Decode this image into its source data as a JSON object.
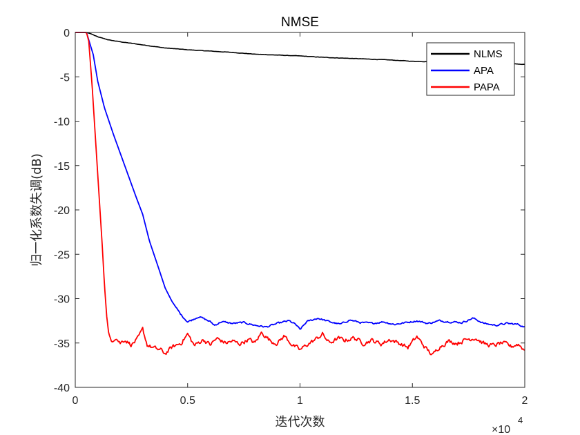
{
  "chart_data": {
    "type": "line",
    "title": "NMSE",
    "xlabel": "迭代次数",
    "ylabel": "归一化系数失调(dB)",
    "x_exponent_label": "×10",
    "x_exponent_power": "4",
    "xlim": [
      0,
      20000
    ],
    "ylim": [
      -40,
      0
    ],
    "xticks": [
      0,
      5000,
      10000,
      15000,
      20000
    ],
    "xtick_labels": [
      "0",
      "0.5",
      "1",
      "1.5",
      "2"
    ],
    "yticks": [
      0,
      -5,
      -10,
      -15,
      -20,
      -25,
      -30,
      -35,
      -40
    ],
    "ytick_labels": [
      "0",
      "-5",
      "-10",
      "-15",
      "-20",
      "-25",
      "-30",
      "-35",
      "-40"
    ],
    "grid": false,
    "legend_position": "top-right",
    "series": [
      {
        "name": "NLMS",
        "color": "#000000",
        "points": [
          [
            0,
            0
          ],
          [
            500,
            0
          ],
          [
            700,
            -0.15
          ],
          [
            1000,
            -0.5
          ],
          [
            1500,
            -0.85
          ],
          [
            2000,
            -1.05
          ],
          [
            3000,
            -1.4
          ],
          [
            4000,
            -1.75
          ],
          [
            5000,
            -1.95
          ],
          [
            6000,
            -2.1
          ],
          [
            7000,
            -2.25
          ],
          [
            8000,
            -2.45
          ],
          [
            9000,
            -2.55
          ],
          [
            10000,
            -2.65
          ],
          [
            11000,
            -2.8
          ],
          [
            12000,
            -2.9
          ],
          [
            13000,
            -3.0
          ],
          [
            14000,
            -3.1
          ],
          [
            15000,
            -3.25
          ],
          [
            16000,
            -3.3
          ],
          [
            17000,
            -3.35
          ],
          [
            18000,
            -3.45
          ],
          [
            19000,
            -3.5
          ],
          [
            20000,
            -3.6
          ]
        ]
      },
      {
        "name": "APA",
        "color": "#0000ff",
        "points": [
          [
            0,
            0
          ],
          [
            500,
            0
          ],
          [
            800,
            -2.5
          ],
          [
            1000,
            -5.5
          ],
          [
            1300,
            -8.5
          ],
          [
            1700,
            -11.5
          ],
          [
            2200,
            -15
          ],
          [
            2700,
            -18.5
          ],
          [
            3000,
            -20.5
          ],
          [
            3300,
            -23.5
          ],
          [
            3700,
            -26.5
          ],
          [
            4000,
            -28.8
          ],
          [
            4300,
            -30.3
          ],
          [
            4700,
            -31.8
          ],
          [
            5000,
            -32.6
          ],
          [
            5200,
            -32.4
          ],
          [
            5500,
            -32.0
          ],
          [
            6000,
            -32.6
          ],
          [
            6200,
            -33.0
          ],
          [
            6500,
            -32.6
          ],
          [
            7000,
            -32.8
          ],
          [
            7500,
            -32.7
          ],
          [
            8000,
            -33.0
          ],
          [
            8500,
            -33.2
          ],
          [
            9000,
            -32.8
          ],
          [
            9500,
            -32.5
          ],
          [
            9800,
            -32.9
          ],
          [
            10000,
            -33.5
          ],
          [
            10300,
            -32.6
          ],
          [
            10800,
            -32.2
          ],
          [
            11300,
            -32.6
          ],
          [
            11800,
            -32.9
          ],
          [
            12200,
            -32.4
          ],
          [
            12700,
            -32.7
          ],
          [
            13200,
            -32.8
          ],
          [
            13700,
            -32.6
          ],
          [
            14200,
            -32.9
          ],
          [
            14700,
            -32.7
          ],
          [
            15200,
            -32.5
          ],
          [
            15700,
            -32.8
          ],
          [
            16200,
            -32.5
          ],
          [
            16700,
            -32.6
          ],
          [
            17200,
            -32.7
          ],
          [
            17700,
            -32.2
          ],
          [
            18200,
            -32.8
          ],
          [
            18700,
            -33.0
          ],
          [
            19200,
            -32.8
          ],
          [
            19700,
            -32.9
          ],
          [
            20000,
            -33.2
          ]
        ]
      },
      {
        "name": "PAPA",
        "color": "#ff0000",
        "points": [
          [
            0,
            0
          ],
          [
            500,
            0
          ],
          [
            600,
            -1
          ],
          [
            750,
            -6
          ],
          [
            900,
            -12
          ],
          [
            1050,
            -18
          ],
          [
            1200,
            -24
          ],
          [
            1300,
            -28.5
          ],
          [
            1400,
            -32
          ],
          [
            1500,
            -34.2
          ],
          [
            1600,
            -34.8
          ],
          [
            1800,
            -34.3
          ],
          [
            2000,
            -35.0
          ],
          [
            2200,
            -34.6
          ],
          [
            2500,
            -35.2
          ],
          [
            2800,
            -34.5
          ],
          [
            3000,
            -33.5
          ],
          [
            3200,
            -35.2
          ],
          [
            3500,
            -35.6
          ],
          [
            3800,
            -35.8
          ],
          [
            4000,
            -36.2
          ],
          [
            4300,
            -35.5
          ],
          [
            4700,
            -35.0
          ],
          [
            5000,
            -34.0
          ],
          [
            5300,
            -35.3
          ],
          [
            5700,
            -34.6
          ],
          [
            6000,
            -35.2
          ],
          [
            6300,
            -34.5
          ],
          [
            6700,
            -35.0
          ],
          [
            7000,
            -34.8
          ],
          [
            7300,
            -35.1
          ],
          [
            7700,
            -34.6
          ],
          [
            8000,
            -35.0
          ],
          [
            8300,
            -33.8
          ],
          [
            8700,
            -34.8
          ],
          [
            9000,
            -35.0
          ],
          [
            9300,
            -34.2
          ],
          [
            9700,
            -35.3
          ],
          [
            10000,
            -35.8
          ],
          [
            10300,
            -35.2
          ],
          [
            10700,
            -34.6
          ],
          [
            11000,
            -34.0
          ],
          [
            11300,
            -35.0
          ],
          [
            11700,
            -34.5
          ],
          [
            12000,
            -34.7
          ],
          [
            12400,
            -34.4
          ],
          [
            12800,
            -35.0
          ],
          [
            13200,
            -34.7
          ],
          [
            13600,
            -35.1
          ],
          [
            14000,
            -34.6
          ],
          [
            14400,
            -35.0
          ],
          [
            14800,
            -35.5
          ],
          [
            15200,
            -34.3
          ],
          [
            15600,
            -35.6
          ],
          [
            15900,
            -36.4
          ],
          [
            16200,
            -35.4
          ],
          [
            16600,
            -34.8
          ],
          [
            17000,
            -35.0
          ],
          [
            17400,
            -34.6
          ],
          [
            17800,
            -34.4
          ],
          [
            18200,
            -35.1
          ],
          [
            18600,
            -35.3
          ],
          [
            19000,
            -35.0
          ],
          [
            19400,
            -35.4
          ],
          [
            19700,
            -35.1
          ],
          [
            20000,
            -35.8
          ]
        ]
      }
    ]
  }
}
